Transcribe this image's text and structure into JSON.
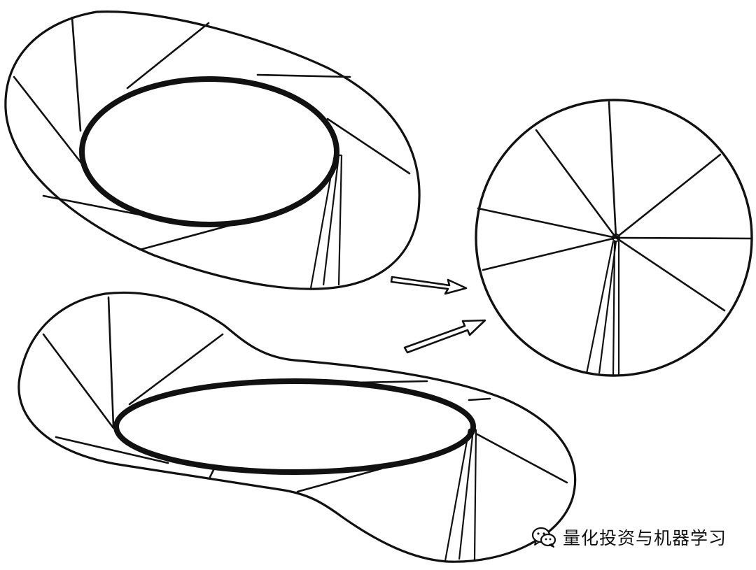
{
  "diagram": {
    "description_shapes": [
      "annulus-surface",
      "pinched-surface",
      "disk-with-radial-lines"
    ],
    "stroke_color": "#111111",
    "background_color": "#ffffff"
  },
  "watermark": {
    "icon": "wechat-icon",
    "text": "量化投资与机器学习"
  }
}
